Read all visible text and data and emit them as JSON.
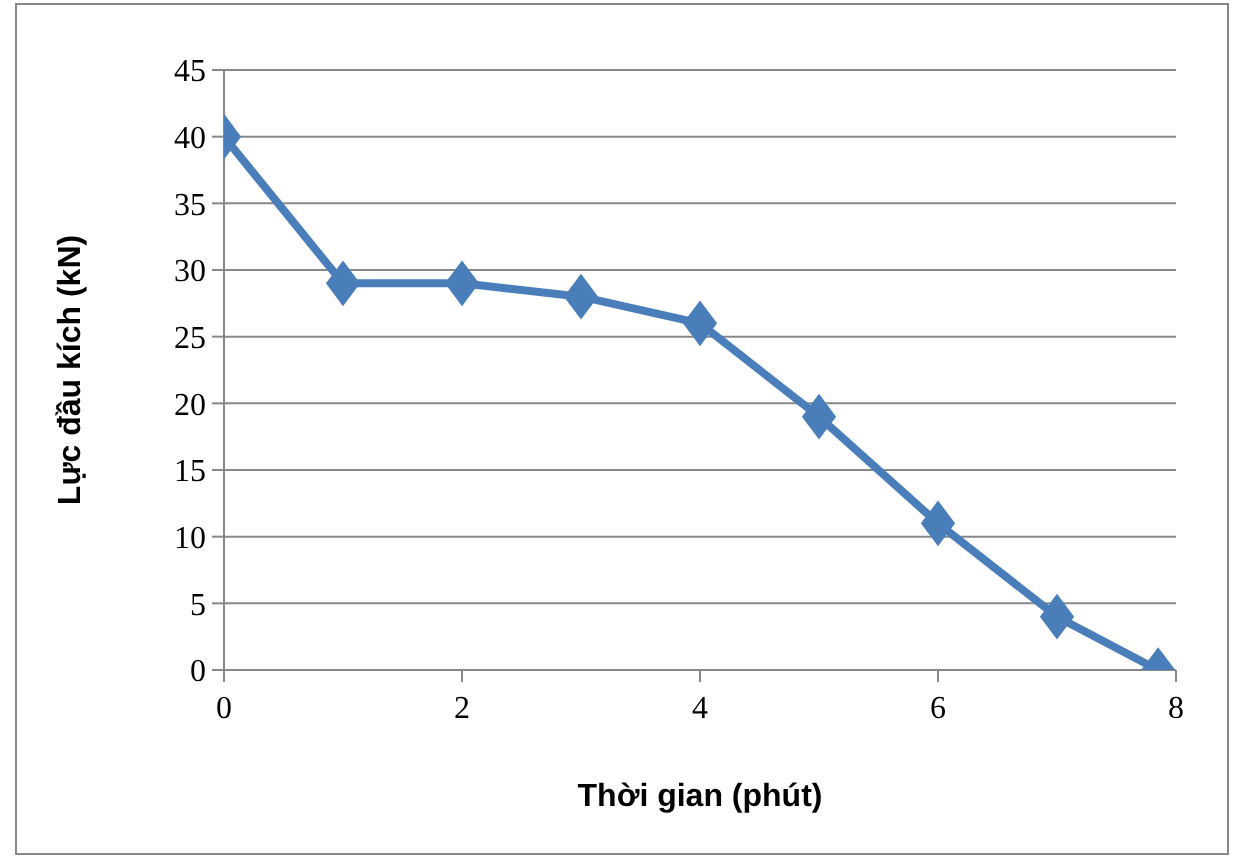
{
  "chart_data": {
    "type": "line",
    "xlabel": "Thời gian (phút)",
    "ylabel": "Lực đầu kích (kN)",
    "x": [
      0,
      1,
      2,
      3,
      4,
      5,
      6,
      7,
      7.85
    ],
    "series": [
      {
        "color": "#4a7ebb",
        "values": [
          40,
          29,
          29,
          28,
          26,
          19,
          11,
          4,
          0
        ]
      }
    ],
    "xlim": [
      0,
      8
    ],
    "xticks": [
      0,
      2,
      4,
      6,
      8
    ],
    "ylim": [
      0,
      45
    ],
    "yticks": [
      0,
      5,
      10,
      15,
      20,
      25,
      30,
      35,
      40,
      45
    ],
    "grid": "y",
    "marker": "diamond",
    "line_style": "solid"
  }
}
